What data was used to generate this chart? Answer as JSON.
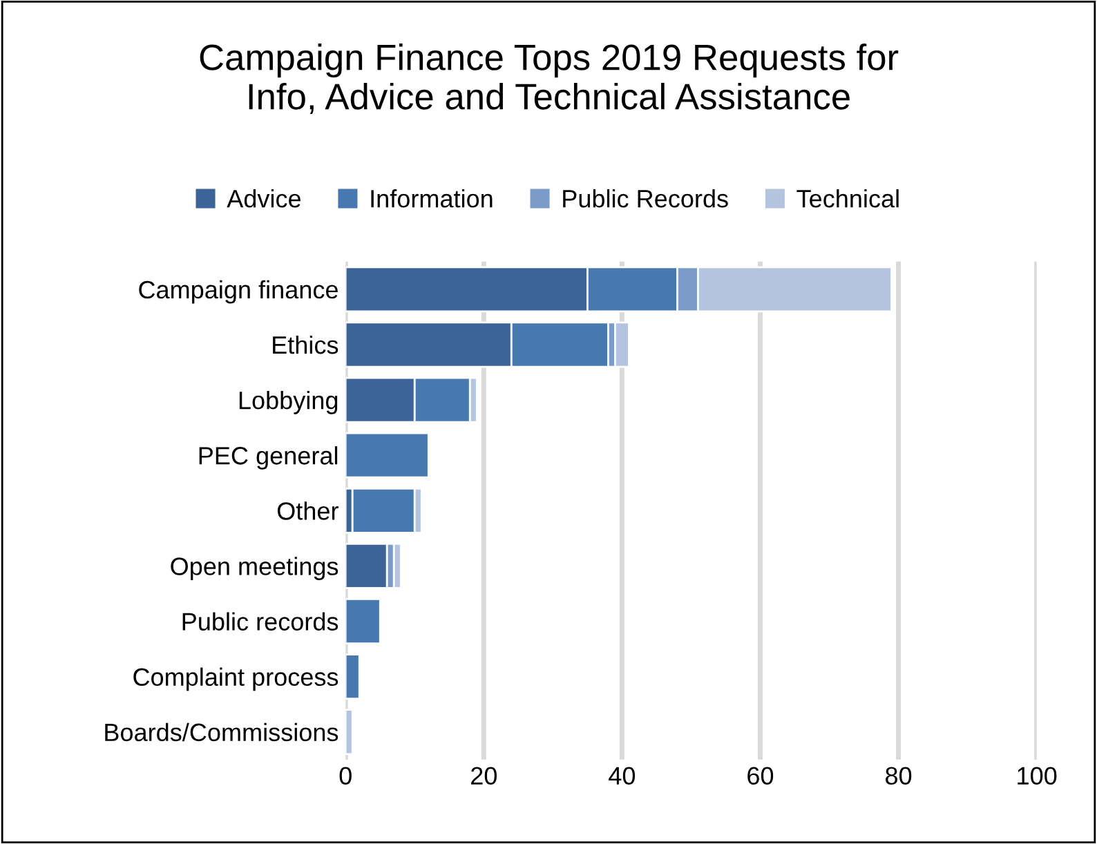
{
  "chart_data": {
    "type": "bar",
    "orientation": "horizontal",
    "stacked": true,
    "title": "Campaign Finance Tops 2019 Requests for\nInfo, Advice and Technical Assistance",
    "categories": [
      "Campaign finance",
      "Ethics",
      "Lobbying",
      "PEC general",
      "Other",
      "Open meetings",
      "Public records",
      "Complaint process",
      "Boards/Commissions"
    ],
    "series": [
      {
        "name": "Advice",
        "color": "#3c6496",
        "values": [
          35,
          24,
          10,
          0,
          1,
          6,
          0,
          0,
          0
        ]
      },
      {
        "name": "Information",
        "color": "#4878b0",
        "values": [
          13,
          14,
          8,
          12,
          9,
          0,
          5,
          2,
          0
        ]
      },
      {
        "name": "Public Records",
        "color": "#7b9bc8",
        "values": [
          3,
          1,
          0,
          0,
          0,
          1,
          0,
          0,
          0
        ]
      },
      {
        "name": "Technical",
        "color": "#b4c3de",
        "values": [
          28,
          2,
          1,
          0,
          1,
          1,
          0,
          0,
          1
        ]
      }
    ],
    "xlim": [
      0,
      100
    ],
    "xticks": [
      0,
      20,
      40,
      60,
      80,
      100
    ],
    "grid": "x",
    "legend": "top"
  }
}
